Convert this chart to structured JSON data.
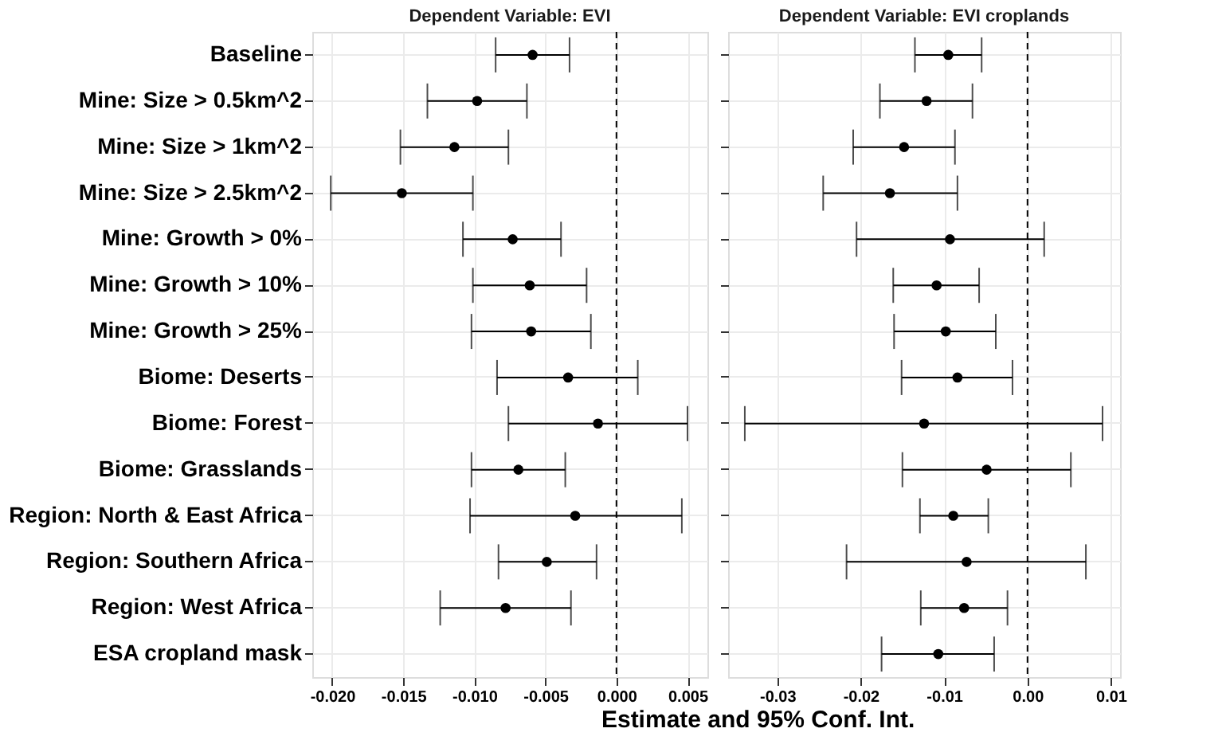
{
  "chart_data": [
    {
      "type": "scatter",
      "orientation": "horizontal",
      "title": "Dependent Variable: EVI",
      "xlabel": "Estimate and 95% Conf. Int.",
      "categories": [
        "Baseline",
        "Mine: Size > 0.5km^2",
        "Mine: Size > 1km^2",
        "Mine: Size > 2.5km^2",
        "Mine: Growth > 0%",
        "Mine: Growth > 10%",
        "Mine: Growth > 25%",
        "Biome: Deserts",
        "Biome: Forest",
        "Biome: Grasslands",
        "Region: North & East Africa",
        "Region: Southern Africa",
        "Region: West Africa",
        "ESA cropland mask"
      ],
      "values": [
        -0.0059,
        -0.0098,
        -0.0114,
        -0.0151,
        -0.0073,
        -0.0061,
        -0.006,
        -0.0034,
        -0.0013,
        -0.0069,
        -0.0029,
        -0.0049,
        -0.0078,
        null
      ],
      "errors": [
        [
          -0.0085,
          -0.0033
        ],
        [
          -0.0133,
          -0.0063
        ],
        [
          -0.0152,
          -0.0076
        ],
        [
          -0.0201,
          -0.0101
        ],
        [
          -0.0108,
          -0.0039
        ],
        [
          -0.0101,
          -0.0021
        ],
        [
          -0.0102,
          -0.0018
        ],
        [
          -0.0084,
          0.0015
        ],
        [
          -0.0076,
          0.005
        ],
        [
          -0.0102,
          -0.0036
        ],
        [
          -0.0103,
          0.0046
        ],
        [
          -0.0083,
          -0.0014
        ],
        [
          -0.0124,
          -0.0032
        ],
        null
      ],
      "color": "#000000",
      "marker": "circle",
      "xlim": [
        -0.0214,
        0.0064
      ],
      "xticks": [
        {
          "value": -0.02,
          "label": "-0.020"
        },
        {
          "value": -0.015,
          "label": "-0.015"
        },
        {
          "value": -0.01,
          "label": "-0.010"
        },
        {
          "value": -0.005,
          "label": "-0.005"
        },
        {
          "value": 0,
          "label": "0.000"
        },
        {
          "value": 0.005,
          "label": "0.005"
        }
      ],
      "ref_lines": [
        {
          "axis": "x",
          "value": 0,
          "line_style": "dashed",
          "color": "#000000"
        }
      ],
      "grid": true
    },
    {
      "type": "scatter",
      "orientation": "horizontal",
      "title": "Dependent Variable: EVI croplands",
      "categories": [
        "Baseline",
        "Mine: Size > 0.5km^2",
        "Mine: Size > 1km^2",
        "Mine: Size > 2.5km^2",
        "Mine: Growth > 0%",
        "Mine: Growth > 10%",
        "Mine: Growth > 25%",
        "Biome: Deserts",
        "Biome: Forest",
        "Biome: Grasslands",
        "Region: North & East Africa",
        "Region: Southern Africa",
        "Region: West Africa",
        "ESA cropland mask"
      ],
      "values": [
        -0.0095,
        -0.0121,
        -0.0148,
        -0.0165,
        -0.0093,
        -0.0109,
        -0.0098,
        -0.0084,
        -0.0124,
        -0.0049,
        -0.0089,
        -0.0073,
        -0.0076,
        -0.0107
      ],
      "errors": [
        [
          -0.0135,
          -0.0055
        ],
        [
          -0.0177,
          -0.0066
        ],
        [
          -0.0209,
          -0.0087
        ],
        [
          -0.0245,
          -0.0084
        ],
        [
          -0.0205,
          0.002
        ],
        [
          -0.0161,
          -0.0058
        ],
        [
          -0.016,
          -0.0038
        ],
        [
          -0.0151,
          -0.0018
        ],
        [
          -0.0339,
          0.009
        ],
        [
          -0.015,
          0.0052
        ],
        [
          -0.0129,
          -0.0047
        ],
        [
          -0.0217,
          0.007
        ],
        [
          -0.0128,
          -0.0024
        ],
        [
          -0.0175,
          -0.004
        ]
      ],
      "color": "#000000",
      "marker": "circle",
      "xlim": [
        -0.0359,
        0.0111
      ],
      "xticks": [
        {
          "value": -0.03,
          "label": "-0.03"
        },
        {
          "value": -0.02,
          "label": "-0.02"
        },
        {
          "value": -0.01,
          "label": "-0.01"
        },
        {
          "value": 0,
          "label": "0.00"
        },
        {
          "value": 0.01,
          "label": "0.01"
        }
      ],
      "ref_lines": [
        {
          "axis": "x",
          "value": 0,
          "line_style": "dashed",
          "color": "#000000"
        }
      ],
      "grid": true,
      "tick_labels": "x"
    }
  ]
}
